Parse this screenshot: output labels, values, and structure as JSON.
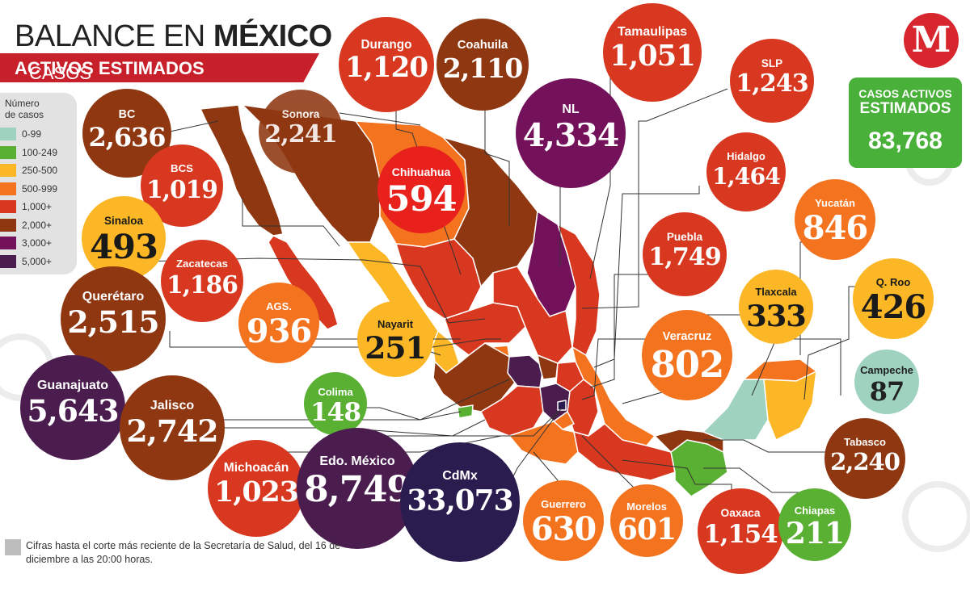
{
  "header": {
    "title_regular": "BALANCE EN ",
    "title_bold": "MÉXICO",
    "subtitle_regular": "CASOS ",
    "subtitle_bold": "ACTIVOS ESTIMADOS"
  },
  "logo": {
    "letter": "M",
    "color": "#d7262e"
  },
  "legend": {
    "title_line1": "Número",
    "title_line2": "de casos",
    "items": [
      {
        "label": "0-99",
        "color": "#9fd3c0"
      },
      {
        "label": "100-249",
        "color": "#5ab033"
      },
      {
        "label": "250-500",
        "color": "#fbb725"
      },
      {
        "label": "500-999",
        "color": "#f4731f"
      },
      {
        "label": "1,000+",
        "color": "#d7381f"
      },
      {
        "label": "2,000+",
        "color": "#8e3711"
      },
      {
        "label": "3,000+",
        "color": "#73125a"
      },
      {
        "label": "5,000+",
        "color": "#4b1d4f"
      }
    ]
  },
  "total": {
    "line1": "CASOS ACTIVOS",
    "line2": "ESTIMADOS",
    "value": "83,768",
    "color": "#49b03a"
  },
  "states": [
    {
      "name": "BC",
      "value": "2,636",
      "color": "#8e3711"
    },
    {
      "name": "Sonora",
      "value": "2,241",
      "color": "#8e3711"
    },
    {
      "name": "Durango",
      "value": "1,120",
      "color": "#d7381f"
    },
    {
      "name": "Coahuila",
      "value": "2,110",
      "color": "#8e3711"
    },
    {
      "name": "Tamaulipas",
      "value": "1,051",
      "color": "#d7381f"
    },
    {
      "name": "SLP",
      "value": "1,243",
      "color": "#d7381f"
    },
    {
      "name": "NL",
      "value": "4,334",
      "color": "#73125a"
    },
    {
      "name": "Chihuahua",
      "value": "594",
      "color": "#e8211d"
    },
    {
      "name": "BCS",
      "value": "1,019",
      "color": "#d7381f"
    },
    {
      "name": "Hidalgo",
      "value": "1,464",
      "color": "#d7381f"
    },
    {
      "name": "Yucatán",
      "value": "846",
      "color": "#f4731f"
    },
    {
      "name": "Sinaloa",
      "value": "493",
      "color": "#fbb725"
    },
    {
      "name": "Puebla",
      "value": "1,749",
      "color": "#d7381f"
    },
    {
      "name": "Zacatecas",
      "value": "1,186",
      "color": "#d7381f"
    },
    {
      "name": "Tlaxcala",
      "value": "333",
      "color": "#fbb725"
    },
    {
      "name": "Q. Roo",
      "value": "426",
      "color": "#fbb725"
    },
    {
      "name": "Querétaro",
      "value": "2,515",
      "color": "#8e3711"
    },
    {
      "name": "AGS.",
      "value": "936",
      "color": "#f4731f"
    },
    {
      "name": "Nayarit",
      "value": "251",
      "color": "#fbb725"
    },
    {
      "name": "Veracruz",
      "value": "802",
      "color": "#f4731f"
    },
    {
      "name": "Campeche",
      "value": "87",
      "color": "#9fd3c0"
    },
    {
      "name": "Guanajuato",
      "value": "5,643",
      "color": "#4b1d4f"
    },
    {
      "name": "Colima",
      "value": "148",
      "color": "#5ab033"
    },
    {
      "name": "Jalisco",
      "value": "2,742",
      "color": "#8e3711"
    },
    {
      "name": "Tabasco",
      "value": "2,240",
      "color": "#8e3711"
    },
    {
      "name": "Michoacán",
      "value": "1,023",
      "color": "#d7381f"
    },
    {
      "name": "Edo. México",
      "value": "8,749",
      "color": "#4b1d4f"
    },
    {
      "name": "CdMx",
      "value": "33,073",
      "color": "#2a1c4e"
    },
    {
      "name": "Guerrero",
      "value": "630",
      "color": "#f4731f"
    },
    {
      "name": "Morelos",
      "value": "601",
      "color": "#f4731f"
    },
    {
      "name": "Oaxaca",
      "value": "1,154",
      "color": "#d7381f"
    },
    {
      "name": "Chiapas",
      "value": "211",
      "color": "#5ab033"
    }
  ],
  "note": "Cifras hasta el corte más reciente de la Secretaría de Salud, del 16 de diciembre a las 20:00 horas."
}
